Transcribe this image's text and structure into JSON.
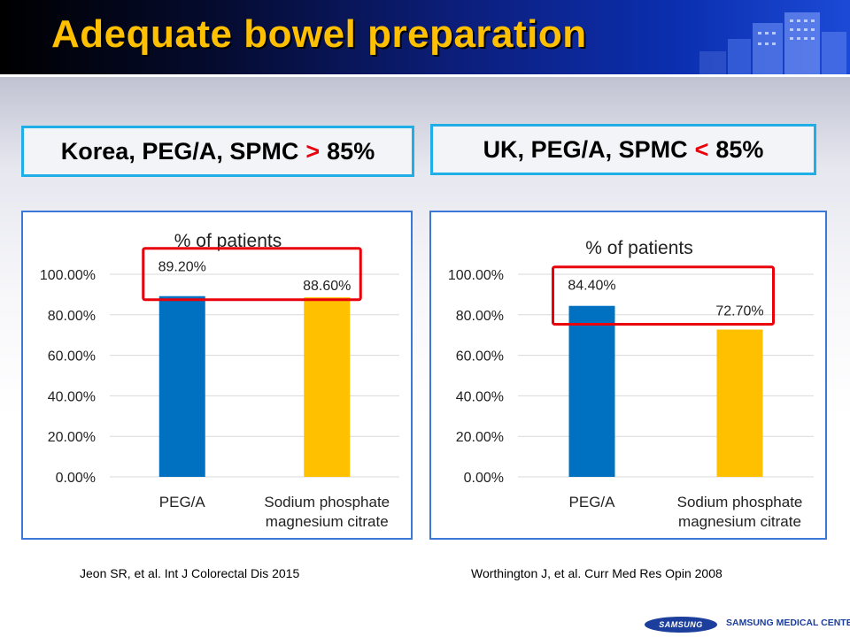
{
  "slide": {
    "title": "Adequate bowel preparation",
    "claims": [
      {
        "text_before": "Korea, PEG/A, SPMC",
        "operator": ">",
        "text_after": "85%"
      },
      {
        "text_before": "UK, PEG/A, SPMC",
        "operator": "<",
        "text_after": "85%"
      }
    ],
    "citations": [
      "Jeon SR, et al. Int J Colorectal Dis 2015",
      "Worthington J, et al. Curr Med Res Opin 2008"
    ],
    "footer": {
      "logo_text": "SAMSUNG",
      "text": "SAMSUNG MEDICAL CENTER"
    },
    "colors": {
      "header_accent": "#ffc000",
      "box_border": "#1faee6",
      "chart_border": "#3b78d8",
      "highlight": "#e8000b"
    }
  },
  "chart_data": [
    {
      "type": "bar",
      "title": "% of patients",
      "categories": [
        [
          "PEG/A"
        ],
        [
          "Sodium phosphate",
          "magnesium citrate"
        ]
      ],
      "values": [
        89.2,
        88.6
      ],
      "value_labels": [
        "89.20%",
        "88.60%"
      ],
      "bar_colors": [
        "#0070c0",
        "#ffc000"
      ],
      "ylim": [
        0,
        100
      ],
      "yticks": [
        "0.00%",
        "20.00%",
        "40.00%",
        "60.00%",
        "80.00%",
        "100.00%"
      ],
      "grid": true,
      "highlight_box": true
    },
    {
      "type": "bar",
      "title": "% of patients",
      "categories": [
        [
          "PEG/A"
        ],
        [
          "Sodium phosphate",
          "magnesium citrate"
        ]
      ],
      "values": [
        84.4,
        72.7
      ],
      "value_labels": [
        "84.40%",
        "72.70%"
      ],
      "bar_colors": [
        "#0070c0",
        "#ffc000"
      ],
      "ylim": [
        0,
        100
      ],
      "yticks": [
        "0.00%",
        "20.00%",
        "40.00%",
        "60.00%",
        "80.00%",
        "100.00%"
      ],
      "grid": true,
      "highlight_box": true
    }
  ]
}
